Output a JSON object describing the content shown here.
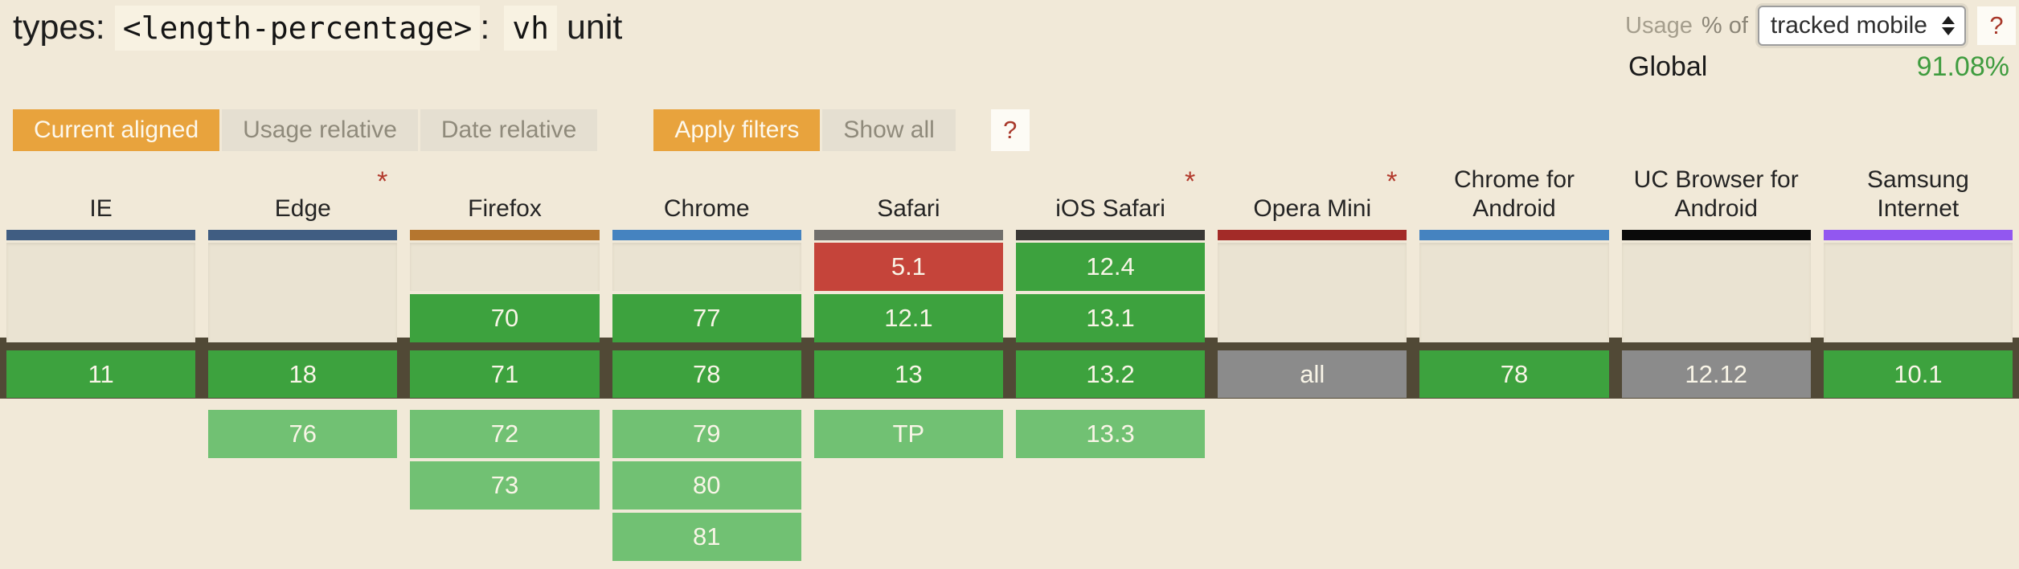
{
  "title": {
    "prefix": "types:",
    "code1": "<length-percentage>",
    "separator": ":",
    "code2": "vh",
    "suffix": "unit"
  },
  "usage": {
    "label": "Usage",
    "percent_of_label": "% of",
    "select_value": "tracked mobile",
    "help_label": "?",
    "region_label": "Global",
    "region_value": "91.08%"
  },
  "filters": {
    "current_aligned": "Current aligned",
    "usage_relative": "Usage relative",
    "date_relative": "Date relative",
    "apply_filters": "Apply filters",
    "show_all": "Show all",
    "help_label": "?"
  },
  "colors": {
    "page_bg": "#f1e9d8",
    "supported": "#3da23e",
    "future": "#71c173",
    "unsupported": "#c5443a",
    "neutral": "#8b8b8b",
    "empty": "#eae3d2",
    "current_row_border": "#514936",
    "accent_orange": "#e8a33d",
    "usage_green": "#3f9c3f",
    "asterisk_red": "#b2392b"
  },
  "table": {
    "columns": [
      {
        "name": "IE",
        "asterisk": false,
        "bar_color": "#405d82",
        "cells": [
          {
            "rows": [
              1,
              2
            ],
            "type": "empty",
            "label": ""
          },
          {
            "rows": [
              3
            ],
            "type": "supported",
            "label": "11"
          }
        ]
      },
      {
        "name": "Edge",
        "asterisk": true,
        "bar_color": "#405d82",
        "cells": [
          {
            "rows": [
              1,
              2
            ],
            "type": "empty",
            "label": ""
          },
          {
            "rows": [
              3
            ],
            "type": "supported",
            "label": "18"
          },
          {
            "rows": [
              4
            ],
            "type": "future",
            "label": "76"
          }
        ]
      },
      {
        "name": "Firefox",
        "asterisk": false,
        "bar_color": "#b5762f",
        "cells": [
          {
            "rows": [
              1
            ],
            "type": "empty",
            "label": ""
          },
          {
            "rows": [
              2
            ],
            "type": "supported",
            "label": "70"
          },
          {
            "rows": [
              3
            ],
            "type": "supported",
            "label": "71"
          },
          {
            "rows": [
              4
            ],
            "type": "future",
            "label": "72"
          },
          {
            "rows": [
              5
            ],
            "type": "future",
            "label": "73"
          }
        ]
      },
      {
        "name": "Chrome",
        "asterisk": false,
        "bar_color": "#4583c0",
        "cells": [
          {
            "rows": [
              1
            ],
            "type": "empty",
            "label": ""
          },
          {
            "rows": [
              2
            ],
            "type": "supported",
            "label": "77"
          },
          {
            "rows": [
              3
            ],
            "type": "supported",
            "label": "78"
          },
          {
            "rows": [
              4
            ],
            "type": "future",
            "label": "79"
          },
          {
            "rows": [
              5
            ],
            "type": "future",
            "label": "80"
          },
          {
            "rows": [
              6
            ],
            "type": "future",
            "label": "81"
          }
        ]
      },
      {
        "name": "Safari",
        "asterisk": false,
        "bar_color": "#716f6c",
        "cells": [
          {
            "rows": [
              1
            ],
            "type": "unsupported",
            "label": "5.1"
          },
          {
            "rows": [
              2
            ],
            "type": "supported",
            "label": "12.1"
          },
          {
            "rows": [
              3
            ],
            "type": "supported",
            "label": "13"
          },
          {
            "rows": [
              4
            ],
            "type": "future",
            "label": "TP"
          }
        ]
      },
      {
        "name": "iOS Safari",
        "asterisk": true,
        "bar_color": "#3a3835",
        "cells": [
          {
            "rows": [
              1
            ],
            "type": "supported",
            "label": "12.4"
          },
          {
            "rows": [
              2
            ],
            "type": "supported",
            "label": "13.1"
          },
          {
            "rows": [
              3
            ],
            "type": "supported",
            "label": "13.2"
          },
          {
            "rows": [
              4
            ],
            "type": "future",
            "label": "13.3"
          }
        ]
      },
      {
        "name": "Opera Mini",
        "asterisk": true,
        "bar_color": "#a32b28",
        "cells": [
          {
            "rows": [
              1,
              2
            ],
            "type": "empty",
            "label": ""
          },
          {
            "rows": [
              3
            ],
            "type": "neutral",
            "label": "all"
          }
        ]
      },
      {
        "name": "Chrome for Android",
        "asterisk": false,
        "bar_color": "#4583c0",
        "cells": [
          {
            "rows": [
              1,
              2
            ],
            "type": "empty",
            "label": ""
          },
          {
            "rows": [
              3
            ],
            "type": "supported",
            "label": "78"
          }
        ]
      },
      {
        "name": "UC Browser for Android",
        "asterisk": false,
        "bar_color": "#0a0a0a",
        "cells": [
          {
            "rows": [
              1,
              2
            ],
            "type": "empty",
            "label": ""
          },
          {
            "rows": [
              3
            ],
            "type": "neutral",
            "label": "12.12"
          }
        ]
      },
      {
        "name": "Samsung Internet",
        "asterisk": false,
        "bar_color": "#9257f0",
        "cells": [
          {
            "rows": [
              1,
              2
            ],
            "type": "empty",
            "label": ""
          },
          {
            "rows": [
              3
            ],
            "type": "supported",
            "label": "10.1"
          }
        ]
      }
    ]
  }
}
